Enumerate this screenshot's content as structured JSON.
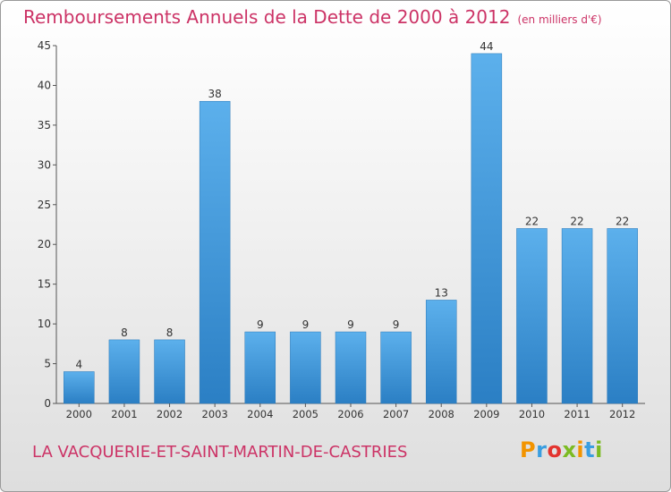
{
  "chart_data": {
    "type": "bar",
    "title": "Remboursements Annuels de la Dette de 2000 à 2012",
    "unit_label": "(en milliers d'€)",
    "categories": [
      "2000",
      "2001",
      "2002",
      "2003",
      "2004",
      "2005",
      "2006",
      "2007",
      "2008",
      "2009",
      "2010",
      "2011",
      "2012"
    ],
    "values": [
      4,
      8,
      8,
      38,
      9,
      9,
      9,
      9,
      13,
      44,
      22,
      22,
      22
    ],
    "ylim": [
      0,
      45
    ],
    "yticks": [
      0,
      5,
      10,
      15,
      20,
      25,
      30,
      35,
      40,
      45
    ],
    "grid": false,
    "xlabel": "",
    "ylabel": "",
    "bar_color": "#4a9fdf"
  },
  "footer": {
    "commune": "LA VACQUERIE-ET-SAINT-MARTIN-DE-CASTRIES",
    "logo_text": "Proxiti"
  }
}
